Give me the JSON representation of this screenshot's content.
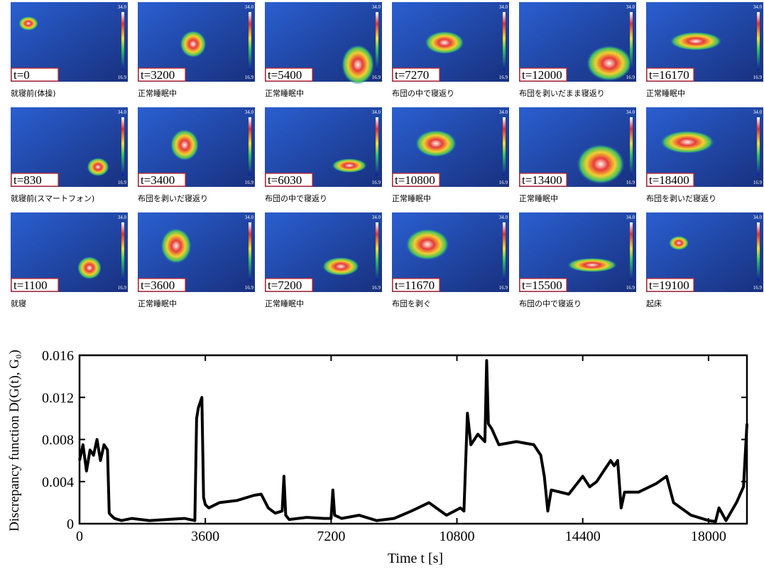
{
  "thermal_images": {
    "scale_max": "34.0",
    "scale_min": "16.9",
    "panels": [
      {
        "time": "t=0",
        "caption": "就寝前(体操)"
      },
      {
        "time": "t=3200",
        "caption": "正常睡眠中"
      },
      {
        "time": "t=5400",
        "caption": "正常睡眠中"
      },
      {
        "time": "t=7270",
        "caption": "布団の中で寝返り"
      },
      {
        "time": "t=12000",
        "caption": "布団を剥いだまま寝返り"
      },
      {
        "time": "t=16170",
        "caption": "正常睡眠中"
      },
      {
        "time": "t=830",
        "caption": "就寝前(スマートフォン)"
      },
      {
        "time": "t=3400",
        "caption": "布団を剥いだ寝返り"
      },
      {
        "time": "t=6030",
        "caption": "布団の中で寝返り"
      },
      {
        "time": "t=10800",
        "caption": "正常睡眠中"
      },
      {
        "time": "t=13400",
        "caption": "正常睡眠中"
      },
      {
        "time": "t=18400",
        "caption": "布団を剥いだ寝返り"
      },
      {
        "time": "t=1100",
        "caption": "就寝"
      },
      {
        "time": "t=3600",
        "caption": "正常睡眠中"
      },
      {
        "time": "t=7200",
        "caption": "正常睡眠中"
      },
      {
        "time": "t=11670",
        "caption": "布団を剥ぐ"
      },
      {
        "time": "t=15500",
        "caption": "布団の中で寝返り"
      },
      {
        "time": "t=19100",
        "caption": "起床"
      }
    ]
  },
  "chart_data": {
    "type": "line",
    "xlabel": "Time  t  [s]",
    "ylabel": "Discrepancy function  D(G(t), G₀)",
    "color": "#000000",
    "x": [
      0,
      100,
      200,
      300,
      400,
      500,
      600,
      700,
      800,
      850,
      900,
      1000,
      1200,
      1500,
      2000,
      2500,
      3000,
      3300,
      3350,
      3400,
      3450,
      3500,
      3550,
      3600,
      3700,
      4000,
      4500,
      5000,
      5200,
      5400,
      5600,
      5800,
      5850,
      5900,
      6000,
      6500,
      7000,
      7200,
      7250,
      7300,
      7500,
      8000,
      8500,
      9000,
      9500,
      10000,
      10500,
      10900,
      11000,
      11100,
      11200,
      11400,
      11600,
      11650,
      11700,
      11800,
      12000,
      12500,
      13000,
      13200,
      13300,
      13400,
      13500,
      14000,
      14400,
      14600,
      14800,
      15000,
      15200,
      15300,
      15400,
      15500,
      15600,
      16000,
      16500,
      16800,
      17000,
      17500,
      18000,
      18200,
      18300,
      18500,
      18800,
      19000,
      19100
    ],
    "values": [
      0.006,
      0.0075,
      0.005,
      0.007,
      0.0065,
      0.008,
      0.006,
      0.0075,
      0.007,
      0.001,
      0.0008,
      0.0005,
      0.0003,
      0.0005,
      0.0003,
      0.0004,
      0.0005,
      0.0003,
      0.01,
      0.011,
      0.0115,
      0.012,
      0.0025,
      0.0018,
      0.0015,
      0.002,
      0.0022,
      0.0027,
      0.0028,
      0.0015,
      0.001,
      0.0012,
      0.0045,
      0.0008,
      0.0004,
      0.0006,
      0.0005,
      0.0005,
      0.0032,
      0.0008,
      0.0005,
      0.0008,
      0.0003,
      0.0005,
      0.0012,
      0.002,
      0.0008,
      0.0015,
      0.0012,
      0.0105,
      0.0075,
      0.0085,
      0.0078,
      0.0155,
      0.0095,
      0.009,
      0.0075,
      0.0078,
      0.0075,
      0.0065,
      0.0045,
      0.0012,
      0.0032,
      0.0028,
      0.0045,
      0.0035,
      0.004,
      0.005,
      0.006,
      0.0055,
      0.006,
      0.0015,
      0.003,
      0.003,
      0.0038,
      0.0045,
      0.002,
      0.0008,
      0.0003,
      0.0002,
      0.0015,
      0.0003,
      0.002,
      0.0035,
      0.0095
    ],
    "xlim": [
      0,
      19100
    ],
    "ylim": [
      0,
      0.016
    ],
    "xticks": [
      0,
      3600,
      7200,
      10800,
      14400,
      18000
    ],
    "yticks": [
      0,
      0.004,
      0.008,
      0.012,
      0.016
    ]
  }
}
